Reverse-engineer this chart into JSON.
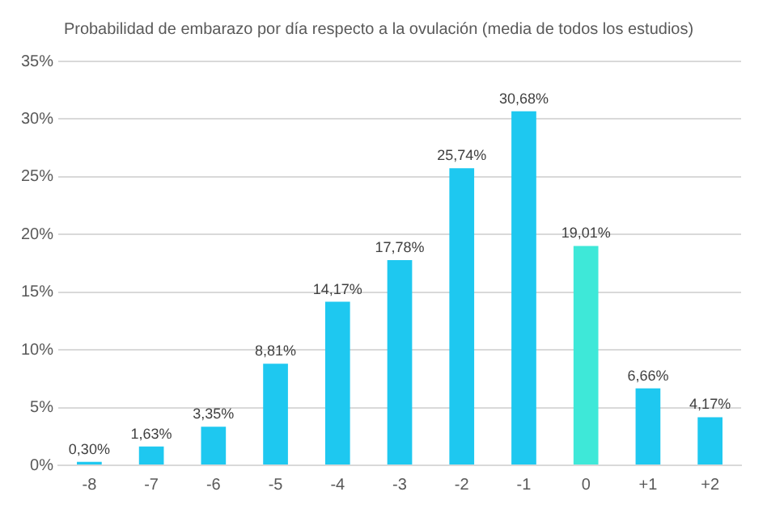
{
  "chart_data": {
    "type": "bar",
    "title": "Probabilidad de embarazo por día respecto a la ovulación (media de todos los estudios)",
    "categories": [
      "-8",
      "-7",
      "-6",
      "-5",
      "-4",
      "-3",
      "-2",
      "-1",
      "0",
      "+1",
      "+2"
    ],
    "values": [
      0.3,
      1.63,
      3.35,
      8.81,
      14.17,
      17.78,
      25.74,
      30.68,
      19.01,
      6.66,
      4.17
    ],
    "colors": [
      "#1ec8f0",
      "#1ec8f0",
      "#1ec8f0",
      "#1ec8f0",
      "#1ec8f0",
      "#1ec8f0",
      "#1ec8f0",
      "#1ec8f0",
      "#3ee8d8",
      "#1ec8f0",
      "#1ec8f0"
    ],
    "value_labels": [
      "0,30%",
      "1,63%",
      "3,35%",
      "8,81%",
      "14,17%",
      "17,78%",
      "25,74%",
      "30,68%",
      "19,01%",
      "6,66%",
      "4,17%"
    ],
    "ylim": [
      0,
      35
    ],
    "yticks": [
      {
        "value": 0,
        "label": "0%"
      },
      {
        "value": 5,
        "label": "5%"
      },
      {
        "value": 10,
        "label": "10%"
      },
      {
        "value": 15,
        "label": "15%"
      },
      {
        "value": 20,
        "label": "20%"
      },
      {
        "value": 25,
        "label": "25%"
      },
      {
        "value": 30,
        "label": "30%"
      },
      {
        "value": 35,
        "label": "35%"
      }
    ],
    "grid": "y"
  }
}
